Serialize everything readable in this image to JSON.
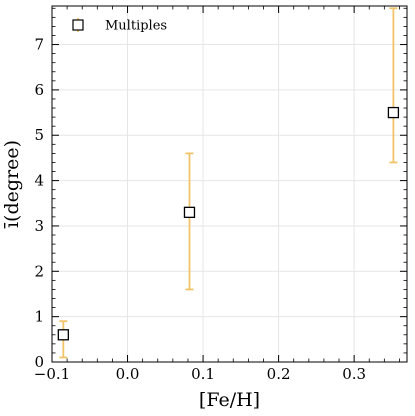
{
  "chart_data": {
    "type": "scatter",
    "xlabel": "[Fe/H]",
    "ylabel": "ī(degree)",
    "xlim": [
      -0.1,
      0.37
    ],
    "ylim": [
      0,
      7.85
    ],
    "x_ticks": [
      -0.1,
      0.0,
      0.1,
      0.2,
      0.3
    ],
    "x_tick_labels": [
      "−0.1",
      "0.0",
      "0.1",
      "0.2",
      "0.3"
    ],
    "y_ticks": [
      0,
      1,
      2,
      3,
      4,
      5,
      6,
      7
    ],
    "y_tick_labels": [
      "0",
      "1",
      "2",
      "3",
      "4",
      "5",
      "6",
      "7"
    ],
    "grid": true,
    "legend_position": "top-left",
    "series": [
      {
        "name": "Multiples",
        "marker": "open-square",
        "marker_color": "#000000",
        "errorbar_color": "#f2c46a",
        "points": [
          {
            "x": -0.085,
            "y": 0.6,
            "err_low": 0.5,
            "err_high": 0.3
          },
          {
            "x": 0.082,
            "y": 3.3,
            "err_low": 1.7,
            "err_high": 1.3
          },
          {
            "x": 0.352,
            "y": 5.5,
            "err_low": 1.1,
            "err_high": 2.3
          }
        ]
      }
    ]
  }
}
